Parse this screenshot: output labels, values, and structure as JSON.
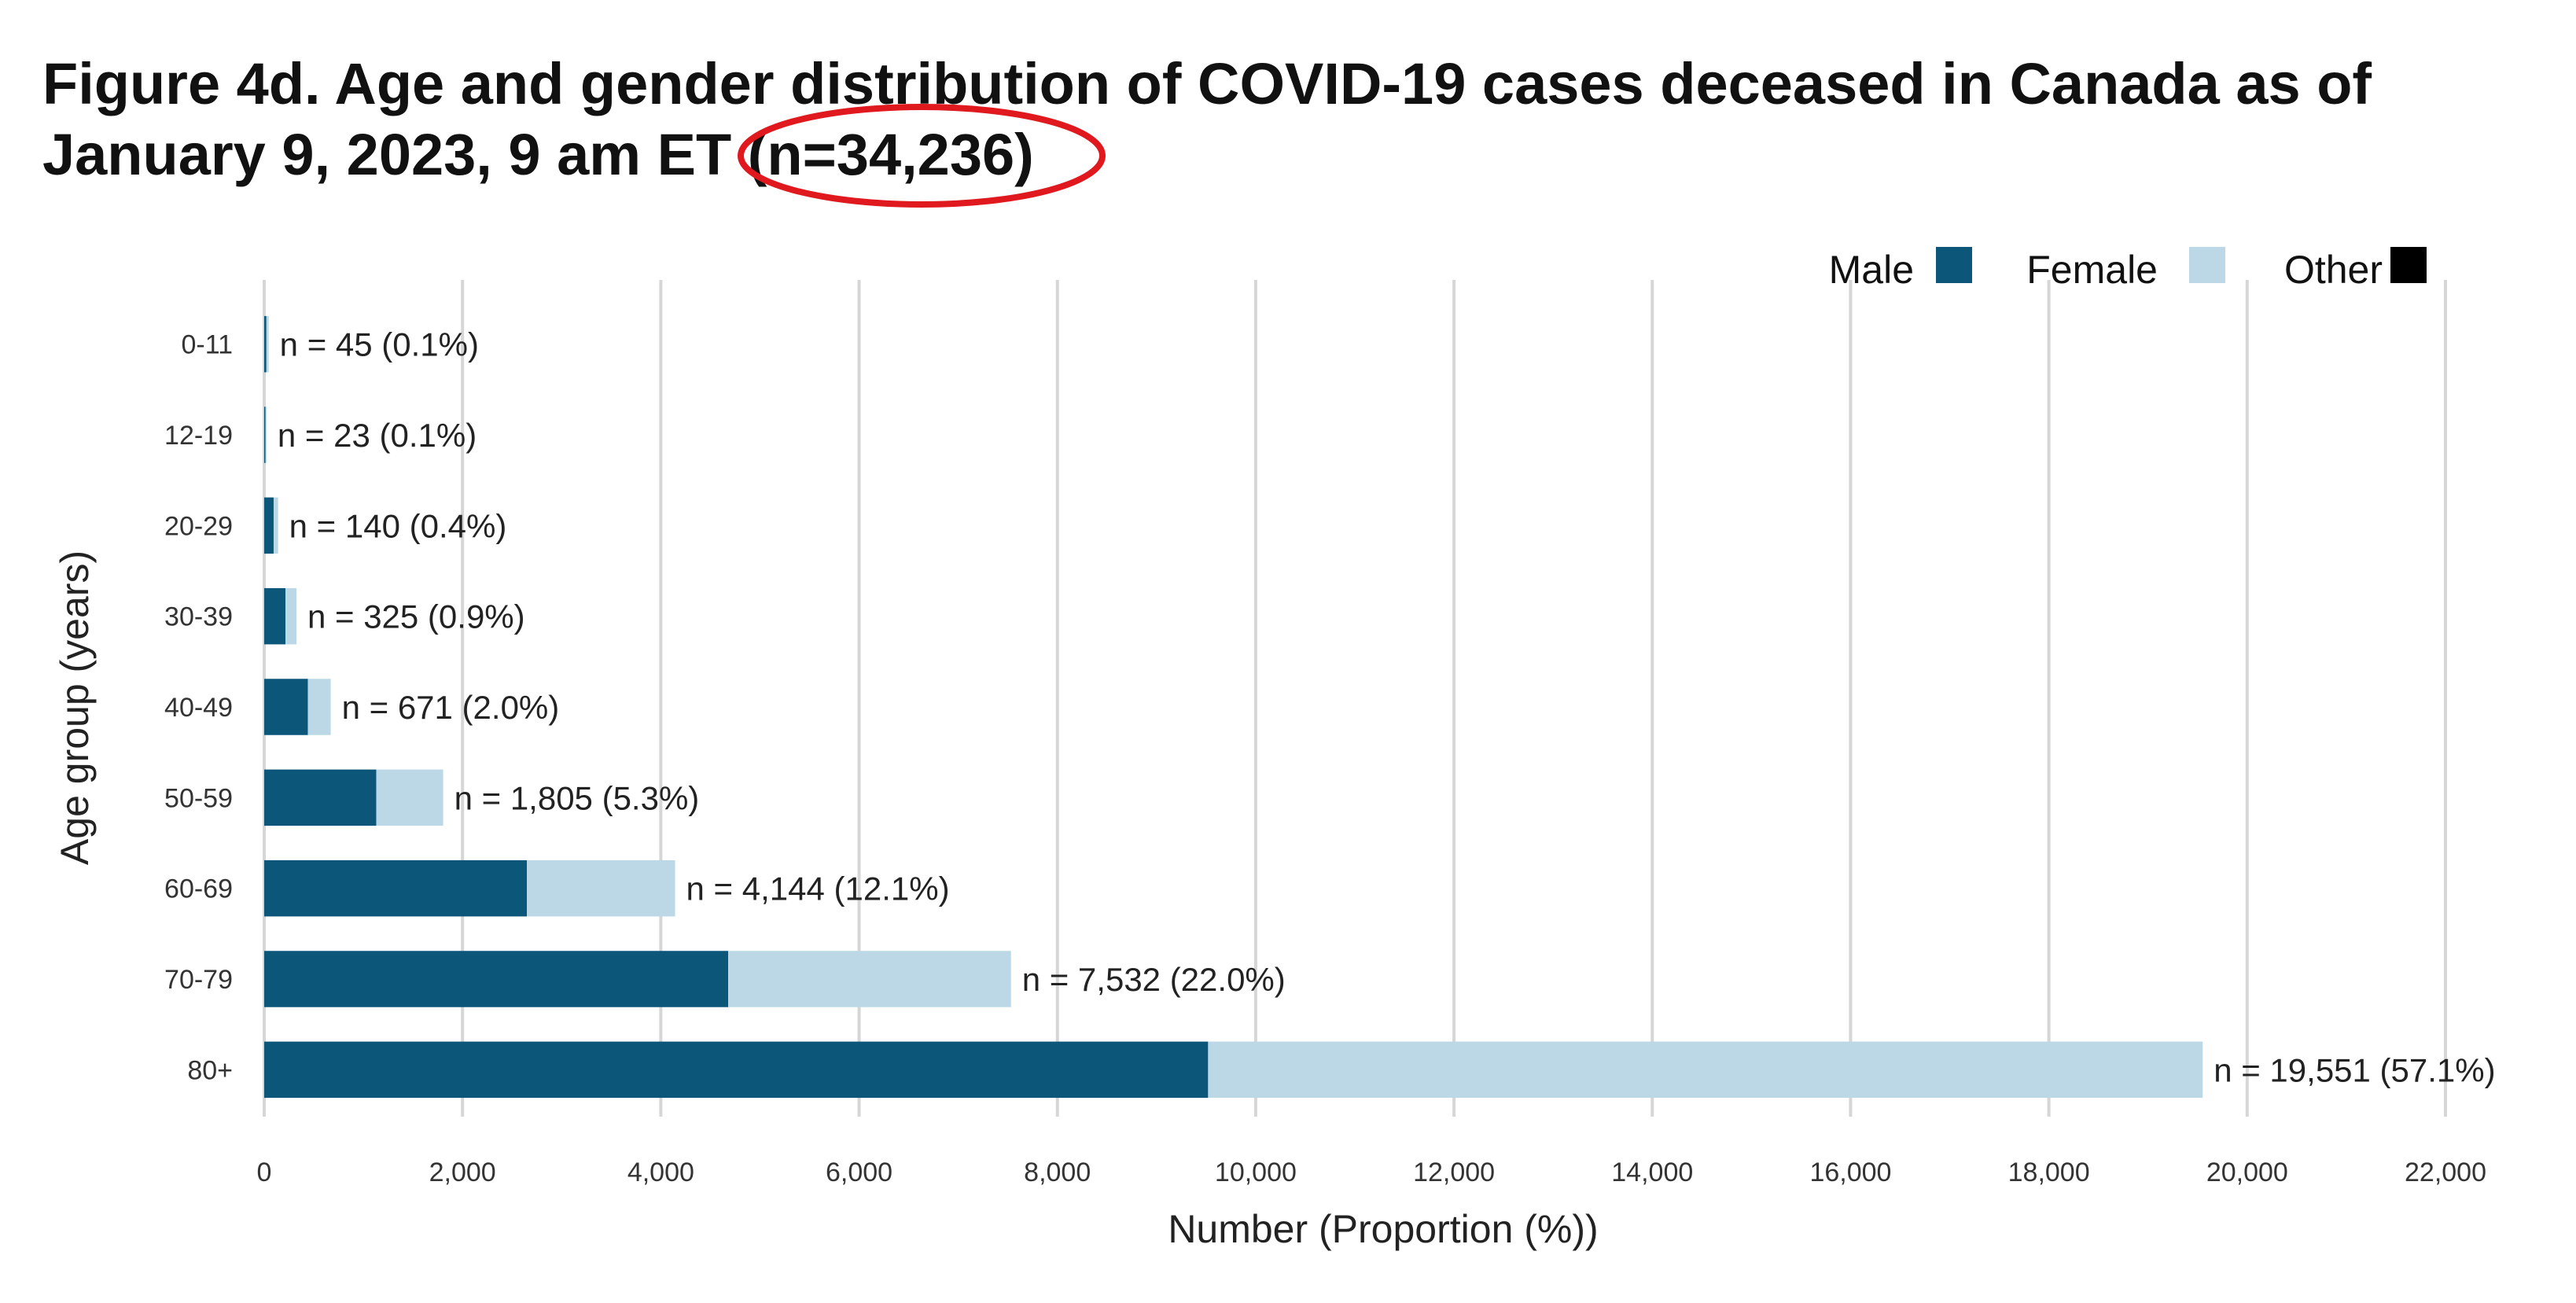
{
  "chart_data": {
    "type": "bar",
    "orientation": "horizontal",
    "stacked": true,
    "title_line1": "Figure 4d. Age and gender distribution of COVID-19 cases deceased in Canada as of",
    "title_line2_prefix": "January 9, 2023, 9 am ET ",
    "title_highlight": "(n=34,236)",
    "highlight_color": "#e0191f",
    "xlabel": "Number (Proportion (%))",
    "ylabel": "Age group (years)",
    "xlim": [
      0,
      22000
    ],
    "xticks": [
      0,
      2000,
      4000,
      6000,
      8000,
      10000,
      12000,
      14000,
      16000,
      18000,
      20000,
      22000
    ],
    "xtick_labels": [
      "0",
      "2,000",
      "4,000",
      "6,000",
      "8,000",
      "10,000",
      "12,000",
      "14,000",
      "16,000",
      "18,000",
      "20,000",
      "22,000"
    ],
    "categories": [
      "0-11",
      "12-19",
      "20-29",
      "30-39",
      "40-49",
      "50-59",
      "60-69",
      "70-79",
      "80+"
    ],
    "series": [
      {
        "name": "Male",
        "color": "#0b5679",
        "values": [
          22,
          12,
          95,
          215,
          440,
          1130,
          2650,
          4680,
          9520
        ]
      },
      {
        "name": "Female",
        "color": "#bcd8e6",
        "values": [
          23,
          11,
          45,
          110,
          231,
          675,
          1494,
          2852,
          10031
        ]
      },
      {
        "name": "Other",
        "color": "#000000",
        "values": [
          0,
          0,
          0,
          0,
          0,
          0,
          0,
          0,
          0
        ]
      }
    ],
    "bar_labels": [
      "n = 45 (0.1%)",
      "n = 23 (0.1%)",
      "n = 140 (0.4%)",
      "n = 325 (0.9%)",
      "n = 671 (2.0%)",
      "n = 1,805 (5.3%)",
      "n = 4,144 (12.1%)",
      "n = 7,532 (22.0%)",
      "n = 19,551 (57.1%)"
    ],
    "totals": [
      45,
      23,
      140,
      325,
      671,
      1805,
      4144,
      7532,
      19551
    ],
    "legend_position": "top-right",
    "grid": true
  }
}
